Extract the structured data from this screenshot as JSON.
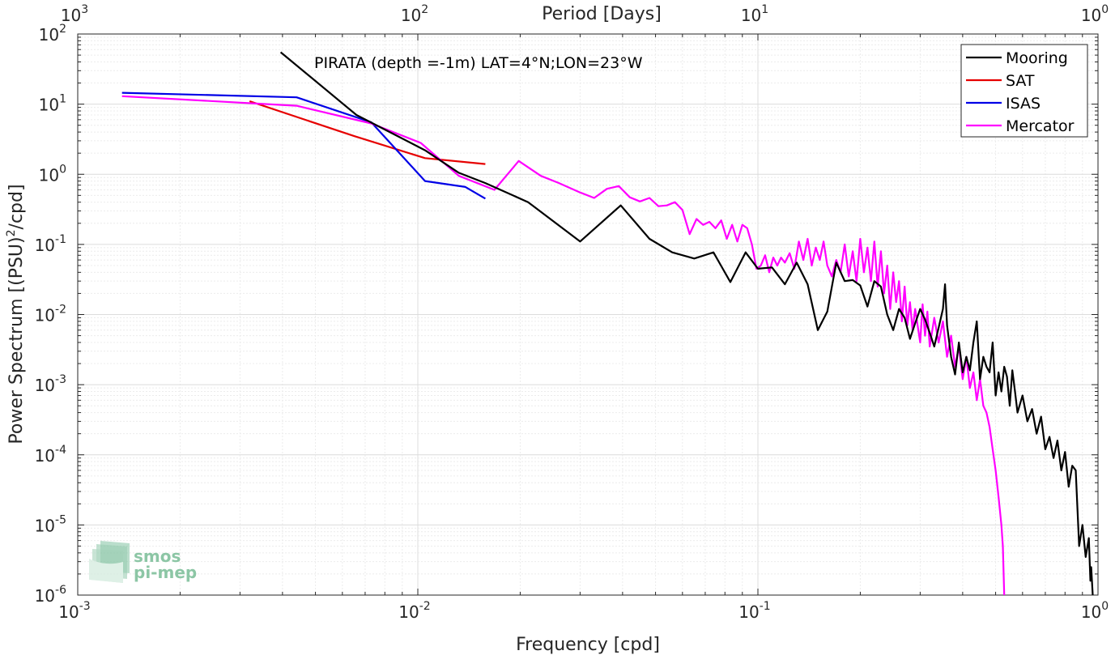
{
  "chart_data": {
    "type": "line",
    "title": "PIRATA (depth =-1m) LAT=4°N;LON=23°W",
    "xlabel": "Frequency [cpd]",
    "ylabel": "Power Spectrum [(PSU)",
    "ylabel_sup": "2",
    "ylabel_end": "/cpd]",
    "top_xlabel": "Period [Days]",
    "xscale": "log",
    "yscale": "log",
    "xlim": [
      0.001,
      1
    ],
    "ylim": [
      1e-06,
      100
    ],
    "grid": true,
    "legend_position": "top-right",
    "x_ticks": [
      {
        "base": "10",
        "exp": "-3",
        "value": 0.001
      },
      {
        "base": "10",
        "exp": "-2",
        "value": 0.01
      },
      {
        "base": "10",
        "exp": "-1",
        "value": 0.1
      },
      {
        "base": "10",
        "exp": "0",
        "value": 1
      }
    ],
    "top_x_ticks": [
      {
        "base": "10",
        "exp": "3",
        "value": 0.001
      },
      {
        "base": "10",
        "exp": "2",
        "value": 0.01
      },
      {
        "base": "10",
        "exp": "1",
        "value": 0.1
      },
      {
        "base": "10",
        "exp": "0",
        "value": 1
      }
    ],
    "y_ticks": [
      {
        "base": "10",
        "exp": "2",
        "value": 100
      },
      {
        "base": "10",
        "exp": "1",
        "value": 10
      },
      {
        "base": "10",
        "exp": "0",
        "value": 1
      },
      {
        "base": "10",
        "exp": "-1",
        "value": 0.1
      },
      {
        "base": "10",
        "exp": "-2",
        "value": 0.01
      },
      {
        "base": "10",
        "exp": "-3",
        "value": 0.001
      },
      {
        "base": "10",
        "exp": "-4",
        "value": 0.0001
      },
      {
        "base": "10",
        "exp": "-5",
        "value": 1e-05
      },
      {
        "base": "10",
        "exp": "-6",
        "value": 1e-06
      }
    ],
    "series": [
      {
        "name": "Mooring",
        "color": "#000000",
        "points": [
          [
            0.00395,
            55
          ],
          [
            0.0066,
            7
          ],
          [
            0.0105,
            2.2
          ],
          [
            0.0132,
            1.05
          ],
          [
            0.0158,
            0.75
          ],
          [
            0.0211,
            0.4
          ],
          [
            0.03,
            0.11
          ],
          [
            0.0395,
            0.36
          ],
          [
            0.048,
            0.12
          ],
          [
            0.056,
            0.077
          ],
          [
            0.065,
            0.063
          ],
          [
            0.074,
            0.077
          ],
          [
            0.083,
            0.029
          ],
          [
            0.092,
            0.077
          ],
          [
            0.1,
            0.045
          ],
          [
            0.11,
            0.047
          ],
          [
            0.12,
            0.027
          ],
          [
            0.13,
            0.055
          ],
          [
            0.14,
            0.027
          ],
          [
            0.15,
            0.006
          ],
          [
            0.16,
            0.011
          ],
          [
            0.17,
            0.055
          ],
          [
            0.18,
            0.03
          ],
          [
            0.19,
            0.031
          ],
          [
            0.2,
            0.026
          ],
          [
            0.21,
            0.013
          ],
          [
            0.22,
            0.03
          ],
          [
            0.23,
            0.025
          ],
          [
            0.24,
            0.01
          ],
          [
            0.25,
            0.006
          ],
          [
            0.26,
            0.012
          ],
          [
            0.27,
            0.009
          ],
          [
            0.28,
            0.0045
          ],
          [
            0.29,
            0.0075
          ],
          [
            0.3,
            0.012
          ],
          [
            0.31,
            0.0085
          ],
          [
            0.32,
            0.0055
          ],
          [
            0.33,
            0.0035
          ],
          [
            0.34,
            0.0065
          ],
          [
            0.35,
            0.012
          ],
          [
            0.355,
            0.027
          ],
          [
            0.36,
            0.007
          ],
          [
            0.37,
            0.0025
          ],
          [
            0.38,
            0.0014
          ],
          [
            0.39,
            0.004
          ],
          [
            0.4,
            0.0015
          ],
          [
            0.41,
            0.0025
          ],
          [
            0.42,
            0.0016
          ],
          [
            0.43,
            0.004
          ],
          [
            0.44,
            0.008
          ],
          [
            0.45,
            0.0012
          ],
          [
            0.46,
            0.0025
          ],
          [
            0.47,
            0.0018
          ],
          [
            0.48,
            0.0015
          ],
          [
            0.49,
            0.004
          ],
          [
            0.5,
            0.0007
          ],
          [
            0.51,
            0.0015
          ],
          [
            0.52,
            0.0008
          ],
          [
            0.53,
            0.0018
          ],
          [
            0.54,
            0.0013
          ],
          [
            0.55,
            0.0005
          ],
          [
            0.56,
            0.0016
          ],
          [
            0.57,
            0.0008
          ],
          [
            0.58,
            0.0004
          ],
          [
            0.6,
            0.0007
          ],
          [
            0.62,
            0.0003
          ],
          [
            0.64,
            0.00045
          ],
          [
            0.66,
            0.0002
          ],
          [
            0.68,
            0.00035
          ],
          [
            0.7,
            0.00012
          ],
          [
            0.72,
            0.00018
          ],
          [
            0.74,
            9e-05
          ],
          [
            0.76,
            0.00016
          ],
          [
            0.78,
            6e-05
          ],
          [
            0.8,
            0.00011
          ],
          [
            0.82,
            3.5e-05
          ],
          [
            0.84,
            7e-05
          ],
          [
            0.86,
            6e-05
          ],
          [
            0.88,
            5e-06
          ],
          [
            0.9,
            1e-05
          ],
          [
            0.92,
            3.5e-06
          ],
          [
            0.94,
            6.5e-06
          ],
          [
            0.95,
            1.6e-06
          ],
          [
            0.955,
            2.5e-06
          ],
          [
            0.965,
            1e-06
          ]
        ]
      },
      {
        "name": "SAT",
        "color": "#e60000",
        "points": [
          [
            0.0032,
            11
          ],
          [
            0.0065,
            3.5
          ],
          [
            0.0105,
            1.7
          ],
          [
            0.0158,
            1.4
          ]
        ]
      },
      {
        "name": "ISAS",
        "color": "#0000e6",
        "points": [
          [
            0.00135,
            14.5
          ],
          [
            0.0044,
            12.5
          ],
          [
            0.0073,
            5.5
          ],
          [
            0.0105,
            0.8
          ],
          [
            0.0138,
            0.66
          ],
          [
            0.0158,
            0.45
          ]
        ]
      },
      {
        "name": "Mercator",
        "color": "#ff00ff",
        "points": [
          [
            0.00135,
            13
          ],
          [
            0.0044,
            9.5
          ],
          [
            0.0073,
            5.3
          ],
          [
            0.0102,
            2.8
          ],
          [
            0.0132,
            0.95
          ],
          [
            0.0168,
            0.6
          ],
          [
            0.0198,
            1.55
          ],
          [
            0.023,
            0.95
          ],
          [
            0.026,
            0.75
          ],
          [
            0.03,
            0.55
          ],
          [
            0.033,
            0.46
          ],
          [
            0.036,
            0.62
          ],
          [
            0.039,
            0.68
          ],
          [
            0.042,
            0.47
          ],
          [
            0.045,
            0.41
          ],
          [
            0.048,
            0.46
          ],
          [
            0.051,
            0.35
          ],
          [
            0.054,
            0.36
          ],
          [
            0.057,
            0.4
          ],
          [
            0.06,
            0.31
          ],
          [
            0.063,
            0.14
          ],
          [
            0.066,
            0.23
          ],
          [
            0.069,
            0.19
          ],
          [
            0.072,
            0.21
          ],
          [
            0.075,
            0.17
          ],
          [
            0.078,
            0.22
          ],
          [
            0.081,
            0.12
          ],
          [
            0.084,
            0.19
          ],
          [
            0.087,
            0.11
          ],
          [
            0.09,
            0.19
          ],
          [
            0.093,
            0.17
          ],
          [
            0.096,
            0.1
          ],
          [
            0.099,
            0.045
          ],
          [
            0.102,
            0.05
          ],
          [
            0.105,
            0.07
          ],
          [
            0.108,
            0.04
          ],
          [
            0.111,
            0.065
          ],
          [
            0.114,
            0.05
          ],
          [
            0.117,
            0.065
          ],
          [
            0.12,
            0.055
          ],
          [
            0.124,
            0.075
          ],
          [
            0.128,
            0.045
          ],
          [
            0.132,
            0.11
          ],
          [
            0.136,
            0.06
          ],
          [
            0.14,
            0.12
          ],
          [
            0.144,
            0.05
          ],
          [
            0.148,
            0.09
          ],
          [
            0.152,
            0.06
          ],
          [
            0.156,
            0.11
          ],
          [
            0.16,
            0.05
          ],
          [
            0.165,
            0.035
          ],
          [
            0.17,
            0.06
          ],
          [
            0.175,
            0.04
          ],
          [
            0.18,
            0.1
          ],
          [
            0.185,
            0.035
          ],
          [
            0.19,
            0.08
          ],
          [
            0.195,
            0.03
          ],
          [
            0.2,
            0.12
          ],
          [
            0.205,
            0.04
          ],
          [
            0.21,
            0.09
          ],
          [
            0.215,
            0.03
          ],
          [
            0.22,
            0.11
          ],
          [
            0.225,
            0.025
          ],
          [
            0.23,
            0.08
          ],
          [
            0.235,
            0.02
          ],
          [
            0.24,
            0.05
          ],
          [
            0.245,
            0.012
          ],
          [
            0.25,
            0.04
          ],
          [
            0.255,
            0.015
          ],
          [
            0.26,
            0.03
          ],
          [
            0.265,
            0.008
          ],
          [
            0.27,
            0.025
          ],
          [
            0.275,
            0.007
          ],
          [
            0.28,
            0.015
          ],
          [
            0.285,
            0.006
          ],
          [
            0.29,
            0.012
          ],
          [
            0.3,
            0.004
          ],
          [
            0.305,
            0.014
          ],
          [
            0.31,
            0.005
          ],
          [
            0.315,
            0.011
          ],
          [
            0.32,
            0.0035
          ],
          [
            0.33,
            0.009
          ],
          [
            0.34,
            0.004
          ],
          [
            0.35,
            0.008
          ],
          [
            0.36,
            0.0025
          ],
          [
            0.37,
            0.005
          ],
          [
            0.38,
            0.0018
          ],
          [
            0.39,
            0.0035
          ],
          [
            0.4,
            0.0012
          ],
          [
            0.41,
            0.0025
          ],
          [
            0.42,
            0.0009
          ],
          [
            0.43,
            0.0015
          ],
          [
            0.44,
            0.0006
          ],
          [
            0.45,
            0.0012
          ],
          [
            0.46,
            0.0005
          ],
          [
            0.47,
            0.0004
          ],
          [
            0.48,
            0.00025
          ],
          [
            0.49,
            0.00012
          ],
          [
            0.5,
            6e-05
          ],
          [
            0.51,
            2.5e-05
          ],
          [
            0.52,
            1e-05
          ],
          [
            0.525,
            5e-06
          ],
          [
            0.53,
            1e-06
          ]
        ]
      }
    ],
    "watermark": {
      "line1": "smos",
      "line2": "pi-mep"
    }
  }
}
